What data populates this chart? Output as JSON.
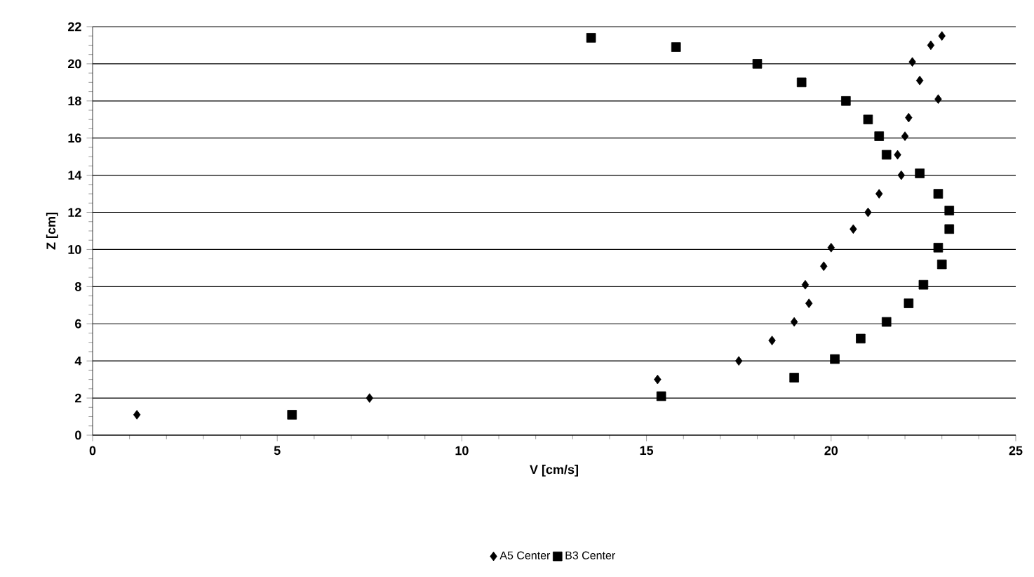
{
  "chart_data": {
    "type": "scatter",
    "xlabel": "V [cm/s]",
    "ylabel": "Z [cm]",
    "xlim": [
      0,
      25
    ],
    "ylim": [
      0,
      22
    ],
    "xticks": [
      0,
      5,
      10,
      15,
      20,
      25
    ],
    "yticks": [
      0,
      2,
      4,
      6,
      8,
      10,
      12,
      14,
      16,
      18,
      20,
      22
    ],
    "grid": "y",
    "legend": "bottom",
    "series": [
      {
        "name": "A5 Center",
        "color": "#000000",
        "marker": "diamond",
        "x": [
          1.2,
          7.5,
          15.3,
          17.5,
          18.4,
          19.0,
          19.4,
          19.3,
          19.8,
          20.0,
          20.6,
          21.0,
          21.3,
          21.9,
          21.8,
          22.0,
          22.1,
          22.9,
          22.4,
          22.2,
          22.7,
          23.0
        ],
        "values": [
          1.1,
          2.0,
          3.0,
          4.0,
          5.1,
          6.1,
          7.1,
          8.1,
          9.1,
          10.1,
          11.1,
          12.0,
          13.0,
          14.0,
          15.1,
          16.1,
          17.1,
          18.1,
          19.1,
          20.1,
          21.0,
          21.5
        ]
      },
      {
        "name": "B3 Center",
        "color": "#000000",
        "marker": "square",
        "x": [
          5.4,
          15.4,
          19.0,
          20.1,
          20.8,
          21.5,
          22.1,
          22.5,
          23.0,
          22.9,
          23.2,
          23.2,
          22.9,
          22.4,
          21.5,
          21.3,
          21.0,
          20.4,
          19.2,
          18.0,
          15.8,
          13.5
        ],
        "values": [
          1.1,
          2.1,
          3.1,
          4.1,
          5.2,
          6.1,
          7.1,
          8.1,
          9.2,
          10.1,
          11.1,
          12.1,
          13.0,
          14.1,
          15.1,
          16.1,
          17.0,
          18.0,
          19.0,
          20.0,
          20.9,
          21.4
        ]
      }
    ]
  }
}
